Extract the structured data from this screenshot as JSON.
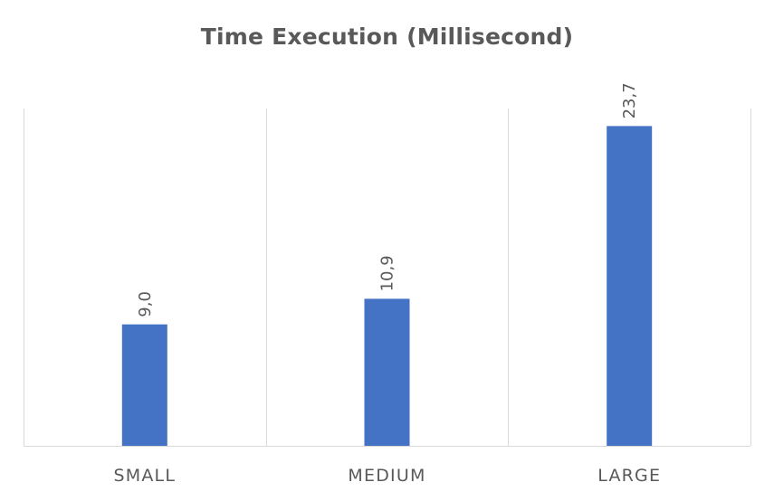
{
  "chart_data": {
    "type": "bar",
    "title": "Time Execution (Millisecond)",
    "categories": [
      "SMALL",
      "MEDIUM",
      "LARGE"
    ],
    "values": [
      9.0,
      10.9,
      23.7
    ],
    "data_labels": [
      "9,0",
      "10,9",
      "23,7"
    ],
    "xlabel": "",
    "ylabel": "",
    "ylim": [
      0,
      25
    ],
    "grid": "vertical category separators",
    "legend": "none",
    "bar_color": "#4472c4"
  }
}
